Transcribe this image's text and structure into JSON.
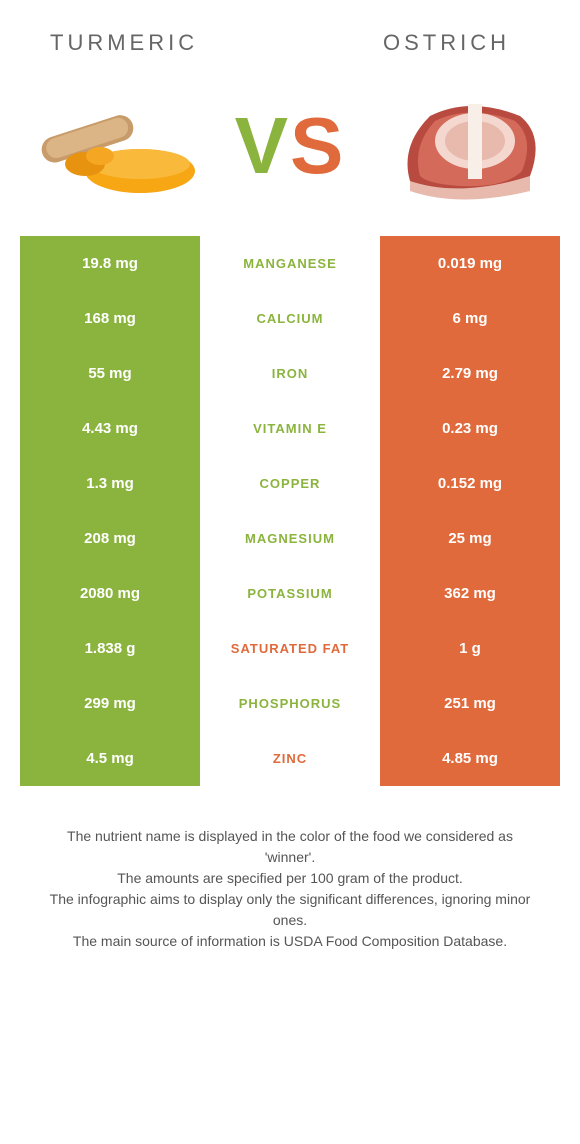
{
  "header": {
    "left_title": "TURMERIC",
    "right_title": "OSTRICH"
  },
  "vs": {
    "v": "V",
    "s": "S"
  },
  "colors": {
    "left": "#8bb43e",
    "right": "#e06a3b",
    "background": "#ffffff",
    "text": "#555555"
  },
  "rows": [
    {
      "left": "19.8 mg",
      "label": "Manganese",
      "right": "0.019 mg",
      "winner": "left"
    },
    {
      "left": "168 mg",
      "label": "Calcium",
      "right": "6 mg",
      "winner": "left"
    },
    {
      "left": "55 mg",
      "label": "Iron",
      "right": "2.79 mg",
      "winner": "left"
    },
    {
      "left": "4.43 mg",
      "label": "Vitamin E",
      "right": "0.23 mg",
      "winner": "left"
    },
    {
      "left": "1.3 mg",
      "label": "Copper",
      "right": "0.152 mg",
      "winner": "left"
    },
    {
      "left": "208 mg",
      "label": "Magnesium",
      "right": "25 mg",
      "winner": "left"
    },
    {
      "left": "2080 mg",
      "label": "Potassium",
      "right": "362 mg",
      "winner": "left"
    },
    {
      "left": "1.838 g",
      "label": "Saturated fat",
      "right": "1 g",
      "winner": "right"
    },
    {
      "left": "299 mg",
      "label": "Phosphorus",
      "right": "251 mg",
      "winner": "left"
    },
    {
      "left": "4.5 mg",
      "label": "Zinc",
      "right": "4.85 mg",
      "winner": "right"
    }
  ],
  "footer": {
    "line1": "The nutrient name is displayed in the color of the food we considered as 'winner'.",
    "line2": "The amounts are specified per 100 gram of the product.",
    "line3": "The infographic aims to display only the significant differences, ignoring minor ones.",
    "line4": "The main source of information is USDA Food Composition Database."
  }
}
